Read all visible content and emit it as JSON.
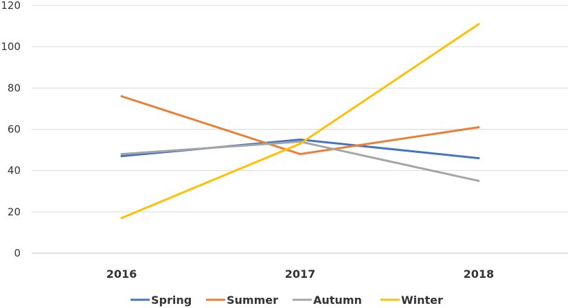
{
  "chart_data": {
    "type": "line",
    "categories": [
      "2016",
      "2017",
      "2018"
    ],
    "series": [
      {
        "name": "Spring",
        "color": "#4472C4",
        "values": [
          47,
          55,
          46
        ]
      },
      {
        "name": "Summer",
        "color": "#ED7D31",
        "values": [
          76,
          48,
          61
        ]
      },
      {
        "name": "Autumn",
        "color": "#A5A5A5",
        "values": [
          48,
          54,
          35
        ]
      },
      {
        "name": "Winter",
        "color": "#FFC000",
        "values": [
          17,
          53,
          111
        ]
      }
    ],
    "ylim": [
      0,
      120
    ],
    "yticks": [
      "0",
      "20",
      "40",
      "60",
      "80",
      "100",
      "120"
    ],
    "grid": true,
    "legend_position": "bottom"
  }
}
